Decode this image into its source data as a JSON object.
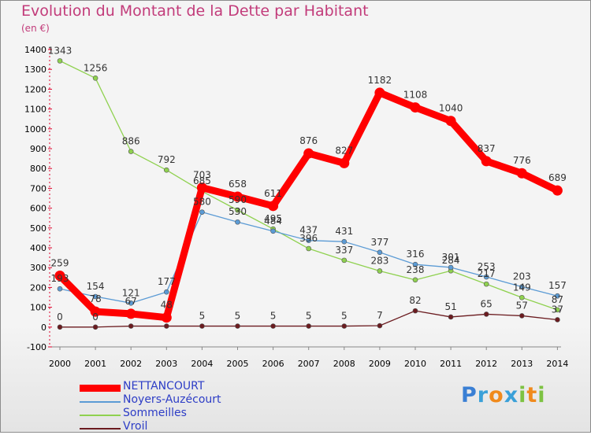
{
  "title": "Evolution du Montant de la Dette par Habitant",
  "subtitle": "(en €)",
  "logo": {
    "text": "Proxiti",
    "colors": [
      "#3a7fd4",
      "#3aa0d8",
      "#f08a1c",
      "#3aa0d8",
      "#7dc242",
      "#f08a1c",
      "#7dc242"
    ]
  },
  "chart_data": {
    "type": "line",
    "title": "Evolution du Montant de la Dette par Habitant",
    "subtitle": "(en €)",
    "x": [
      "2000",
      "2001",
      "2002",
      "2003",
      "2004",
      "2005",
      "2006",
      "2007",
      "2008",
      "2009",
      "2010",
      "2011",
      "2012",
      "2013",
      "2014"
    ],
    "ylim": [
      -100,
      1400
    ],
    "yticks": [
      -100,
      0,
      100,
      200,
      300,
      400,
      500,
      600,
      700,
      800,
      900,
      1000,
      1100,
      1200,
      1300,
      1400
    ],
    "grid": false,
    "legend_position": "bottom-left",
    "series": [
      {
        "name": "Vroil",
        "color": "#6b1b1f",
        "values": [
          0,
          0,
          5,
          5,
          5,
          5,
          5,
          5,
          5,
          7,
          82,
          51,
          65,
          57,
          37
        ],
        "labels": [
          "0",
          "0",
          "",
          "",
          "5",
          "5",
          "5",
          "5",
          "5",
          "7",
          "82",
          "51",
          "65",
          "57",
          "37"
        ]
      },
      {
        "name": "Sommeilles",
        "color": "#8fd14f",
        "values": [
          1343,
          1256,
          886,
          792,
          685,
          590,
          495,
          396,
          337,
          283,
          238,
          284,
          217,
          149,
          87
        ],
        "labels": [
          "1343",
          "1256",
          "886",
          "792",
          "685",
          "590",
          "495",
          "396",
          "337",
          "283",
          "238",
          "284",
          "217",
          "149",
          "87"
        ]
      },
      {
        "name": "Noyers-Auzécourt",
        "color": "#5b9bd5",
        "values": [
          193,
          154,
          121,
          177,
          580,
          530,
          484,
          437,
          431,
          377,
          316,
          301,
          253,
          203,
          157
        ],
        "labels": [
          "193",
          "154",
          "121",
          "177",
          "580",
          "530",
          "484",
          "437",
          "431",
          "377",
          "316",
          "301",
          "253",
          "203",
          "157"
        ]
      },
      {
        "name": "NETTANCOURT",
        "color": "#ff0000",
        "values": [
          259,
          78,
          67,
          48,
          703,
          658,
          611,
          876,
          827,
          1182,
          1108,
          1040,
          837,
          776,
          689
        ],
        "labels": [
          "259",
          "78",
          "67",
          "48",
          "703",
          "658",
          "611",
          "876",
          "827",
          "1182",
          "1108",
          "1040",
          "837",
          "776",
          "689"
        ]
      }
    ]
  },
  "legend": [
    "NETTANCOURT",
    "Noyers-Auzécourt",
    "Sommeilles",
    "Vroil"
  ]
}
